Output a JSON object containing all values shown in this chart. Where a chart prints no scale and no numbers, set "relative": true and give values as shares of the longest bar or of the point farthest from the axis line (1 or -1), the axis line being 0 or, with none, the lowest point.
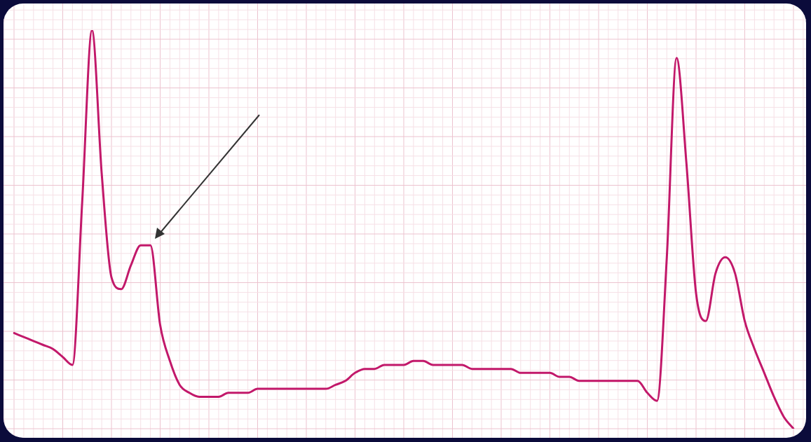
{
  "chart_data": {
    "type": "line",
    "relative": true,
    "grid": true,
    "legend": false,
    "marker": "none",
    "line_style": "solid",
    "categories": [
      null,
      null,
      null,
      null,
      null,
      null,
      null,
      null,
      null,
      null,
      null,
      null,
      null,
      null,
      null,
      null,
      null,
      null,
      null,
      null,
      null,
      null,
      null,
      null,
      null,
      null,
      null,
      null,
      null,
      null,
      null,
      null,
      null,
      null,
      null,
      null,
      null,
      null,
      null,
      null,
      null,
      null,
      null,
      null,
      null,
      null,
      null,
      null,
      null,
      null,
      null,
      null,
      null,
      null,
      null,
      null,
      null,
      null,
      null,
      null,
      null,
      null,
      null,
      null,
      null,
      null,
      null,
      null,
      null,
      null,
      null,
      null,
      null,
      null,
      null,
      null,
      null,
      null,
      null,
      null,
      null
    ],
    "series": [
      {
        "color": "#c2186a",
        "values": [
          0.24,
          0.23,
          0.22,
          0.21,
          0.2,
          0.18,
          0.16,
          0.57,
          1,
          0.64,
          0.38,
          0.35,
          0.41,
          0.46,
          0.46,
          0.26,
          0.17,
          0.11,
          0.09,
          0.08,
          0.08,
          0.08,
          0.09,
          0.09,
          0.09,
          0.1,
          0.1,
          0.1,
          0.1,
          0.1,
          0.1,
          0.1,
          0.1,
          0.11,
          0.12,
          0.14,
          0.15,
          0.15,
          0.16,
          0.16,
          0.16,
          0.17,
          0.17,
          0.16,
          0.16,
          0.16,
          0.16,
          0.15,
          0.15,
          0.15,
          0.15,
          0.15,
          0.14,
          0.14,
          0.14,
          0.14,
          0.13,
          0.13,
          0.12,
          0.12,
          0.12,
          0.12,
          0.12,
          0.12,
          0.12,
          0.09,
          0.07,
          0.43,
          0.93,
          0.67,
          0.34,
          0.27,
          0.39,
          0.43,
          0.39,
          0.27,
          0.2,
          0.14,
          0.08,
          0.03,
          0
        ]
      }
    ]
  }
}
